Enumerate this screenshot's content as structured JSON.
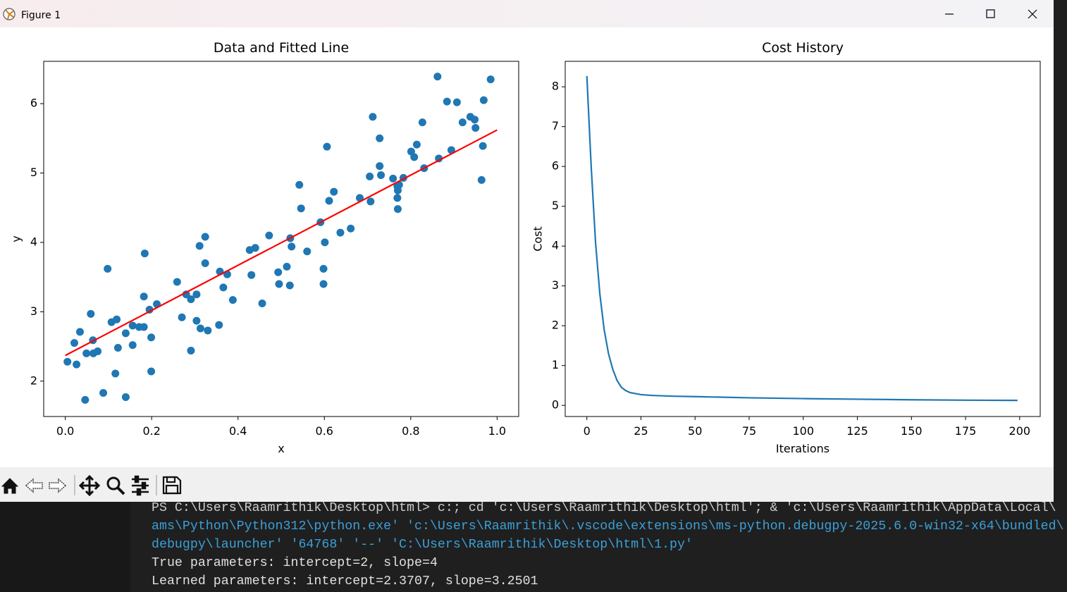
{
  "window": {
    "title": "Figure 1"
  },
  "chart_data": [
    {
      "type": "scatter",
      "title": "Data and Fitted Line",
      "x_label": "x",
      "y_label": "y",
      "xlim": [
        -0.05,
        1.05
      ],
      "ylim": [
        1.49,
        6.61
      ],
      "xticks": [
        {
          "value": 0,
          "label": "0.0"
        },
        0.2,
        0.4,
        0.6,
        0.8,
        {
          "value": 1,
          "label": "1.0"
        }
      ],
      "yticks": [
        2,
        3,
        4,
        5,
        6
      ],
      "series": [
        {
          "mark": "point",
          "color": "#1f77b4",
          "x": [
            0.005,
            0.021,
            0.026,
            0.034,
            0.046,
            0.049,
            0.059,
            0.064,
            0.065,
            0.075,
            0.088,
            0.098,
            0.107,
            0.116,
            0.119,
            0.122,
            0.14,
            0.14,
            0.156,
            0.156,
            0.171,
            0.182,
            0.182,
            0.184,
            0.195,
            0.199,
            0.199,
            0.212,
            0.259,
            0.27,
            0.28,
            0.291,
            0.291,
            0.304,
            0.304,
            0.311,
            0.313,
            0.324,
            0.324,
            0.33,
            0.356,
            0.358,
            0.366,
            0.375,
            0.388,
            0.427,
            0.431,
            0.44,
            0.456,
            0.472,
            0.493,
            0.495,
            0.513,
            0.52,
            0.521,
            0.524,
            0.542,
            0.546,
            0.56,
            0.591,
            0.598,
            0.598,
            0.601,
            0.606,
            0.611,
            0.622,
            0.637,
            0.661,
            0.682,
            0.705,
            0.707,
            0.712,
            0.728,
            0.728,
            0.731,
            0.759,
            0.769,
            0.769,
            0.77,
            0.77,
            0.773,
            0.783,
            0.801,
            0.808,
            0.814,
            0.827,
            0.831,
            0.862,
            0.865,
            0.884,
            0.894,
            0.907,
            0.92,
            0.938,
            0.948,
            0.95,
            0.964,
            0.967,
            0.969,
            0.985
          ],
          "values": [
            2.28,
            2.55,
            2.24,
            2.71,
            1.73,
            2.4,
            2.97,
            2.59,
            2.4,
            2.43,
            1.83,
            3.62,
            2.85,
            2.11,
            2.89,
            2.48,
            1.77,
            2.69,
            2.8,
            2.52,
            2.78,
            2.78,
            3.22,
            3.84,
            3.03,
            2.14,
            2.63,
            3.11,
            3.43,
            2.92,
            3.25,
            3.18,
            2.44,
            3.25,
            2.87,
            3.95,
            2.76,
            4.08,
            3.7,
            2.73,
            2.81,
            3.58,
            3.35,
            3.54,
            3.17,
            3.89,
            3.53,
            3.92,
            3.12,
            4.1,
            3.57,
            3.4,
            3.65,
            3.38,
            4.06,
            3.94,
            4.83,
            4.49,
            3.87,
            4.29,
            3.62,
            3.4,
            4.0,
            5.38,
            4.6,
            4.73,
            4.14,
            4.2,
            4.64,
            4.95,
            4.59,
            5.81,
            5.1,
            5.5,
            4.97,
            4.92,
            4.81,
            4.64,
            4.75,
            4.48,
            4.83,
            4.93,
            5.31,
            5.23,
            5.41,
            5.73,
            5.07,
            6.39,
            5.21,
            6.03,
            5.33,
            6.02,
            5.73,
            5.81,
            5.77,
            5.65,
            4.9,
            5.39,
            6.05,
            6.35
          ]
        },
        {
          "mark": "line",
          "color": "#ff0000",
          "x": [
            0,
            1
          ],
          "values": [
            2.37,
            5.62
          ]
        }
      ]
    },
    {
      "type": "line",
      "title": "Cost History",
      "x_label": "Iterations",
      "y_label": "Cost",
      "xlim": [
        -10,
        209.5
      ],
      "ylim": [
        -0.28,
        8.64
      ],
      "xticks": [
        0,
        25,
        50,
        75,
        100,
        125,
        150,
        175,
        200
      ],
      "yticks": [
        0,
        1,
        2,
        3,
        4,
        5,
        6,
        7,
        8
      ],
      "series": [
        {
          "mark": "line",
          "color": "#1f77b4",
          "x": [
            0,
            2,
            4,
            6,
            8,
            10,
            12,
            14,
            16,
            18,
            20,
            25,
            30,
            40,
            50,
            75,
            100,
            125,
            150,
            175,
            199
          ],
          "values": [
            8.27,
            6.0,
            4.1,
            2.8,
            1.9,
            1.3,
            0.9,
            0.62,
            0.45,
            0.37,
            0.32,
            0.27,
            0.25,
            0.23,
            0.22,
            0.19,
            0.17,
            0.155,
            0.14,
            0.13,
            0.125
          ]
        }
      ]
    }
  ],
  "terminal": {
    "lines": [
      "PS C:\\Users\\Raamrithik\\Desktop\\html>  c:; cd 'c:\\Users\\Raamrithik\\Desktop\\html'; & 'c:\\Users\\Raamrithik\\AppData\\Local\\",
      "ams\\Python\\Python312\\python.exe' 'c:\\Users\\Raamrithik\\.vscode\\extensions\\ms-python.debugpy-2025.6.0-win32-x64\\bundled\\",
      "debugpy\\launcher' '64768' '--' 'C:\\Users\\Raamrithik\\Desktop\\html\\1.py'",
      "True parameters: intercept=2, slope=4",
      "Learned parameters: intercept=2.3707, slope=3.2501"
    ]
  }
}
